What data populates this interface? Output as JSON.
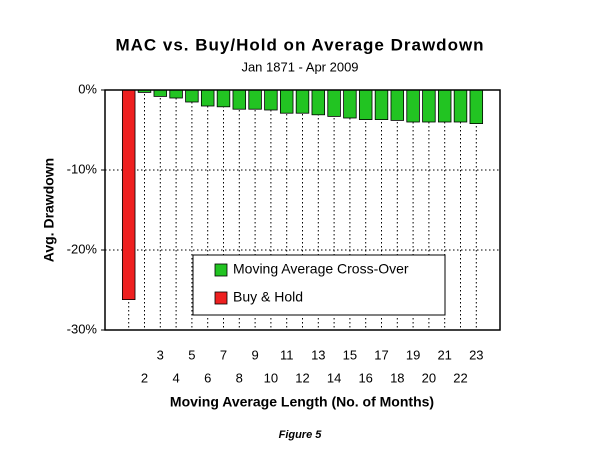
{
  "chart_data": {
    "type": "bar",
    "title": "MAC vs. Buy/Hold on Average Drawdown",
    "subtitle": "Jan 1871 - Apr 2009",
    "x_label": "Moving Average Length (No. of Months)",
    "y_label": "Avg. Drawdown",
    "caption": "Figure 5",
    "categories": [
      null,
      null,
      "2",
      "3",
      "4",
      "5",
      "6",
      "7",
      "8",
      "9",
      "10",
      "11",
      "12",
      "13",
      "14",
      "15",
      "16",
      "17",
      "18",
      "19",
      "20",
      "21",
      "22",
      "23",
      null
    ],
    "series": [
      {
        "name": "Moving Average Cross-Over",
        "color": "#22c422",
        "values": [
          null,
          null,
          -0.3,
          -0.8,
          -1.0,
          -1.5,
          -2.0,
          -2.1,
          -2.4,
          -2.4,
          -2.5,
          -2.9,
          -2.9,
          -3.1,
          -3.3,
          -3.5,
          -3.7,
          -3.7,
          -3.8,
          -4.0,
          -4.0,
          -4.0,
          -4.0,
          -4.2,
          null
        ]
      },
      {
        "name": "Buy & Hold",
        "color": "#ee2020",
        "values": [
          null,
          -26.2,
          null,
          null,
          null,
          null,
          null,
          null,
          null,
          null,
          null,
          null,
          null,
          null,
          null,
          null,
          null,
          null,
          null,
          null,
          null,
          null,
          null,
          null,
          null
        ]
      }
    ],
    "ylim": [
      -30,
      0
    ],
    "yticks": [
      {
        "value": 0,
        "label": "0%"
      },
      {
        "value": -10,
        "label": "-10%"
      },
      {
        "value": -20,
        "label": "-20%"
      },
      {
        "value": -30,
        "label": "-30%"
      }
    ],
    "grid": true
  }
}
